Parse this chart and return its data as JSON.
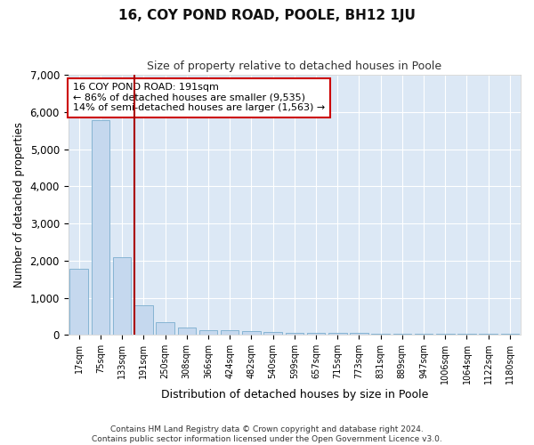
{
  "title": "16, COY POND ROAD, POOLE, BH12 1JU",
  "subtitle": "Size of property relative to detached houses in Poole",
  "xlabel": "Distribution of detached houses by size in Poole",
  "ylabel": "Number of detached properties",
  "bar_labels": [
    "17sqm",
    "75sqm",
    "133sqm",
    "191sqm",
    "250sqm",
    "308sqm",
    "366sqm",
    "424sqm",
    "482sqm",
    "540sqm",
    "599sqm",
    "657sqm",
    "715sqm",
    "773sqm",
    "831sqm",
    "889sqm",
    "947sqm",
    "1006sqm",
    "1064sqm",
    "1122sqm",
    "1180sqm"
  ],
  "bar_values": [
    1780,
    5780,
    2100,
    800,
    350,
    200,
    130,
    115,
    100,
    80,
    60,
    55,
    50,
    45,
    40,
    38,
    35,
    32,
    30,
    28,
    25
  ],
  "bar_color": "#c5d8ee",
  "bar_edgecolor": "#7aadce",
  "highlight_index": 3,
  "highlight_color": "#aa0000",
  "ylim": [
    0,
    7000
  ],
  "yticks": [
    0,
    1000,
    2000,
    3000,
    4000,
    5000,
    6000,
    7000
  ],
  "annotation_text": "16 COY POND ROAD: 191sqm\n← 86% of detached houses are smaller (9,535)\n14% of semi-detached houses are larger (1,563) →",
  "annotation_box_color": "#cc0000",
  "footer_line1": "Contains HM Land Registry data © Crown copyright and database right 2024.",
  "footer_line2": "Contains public sector information licensed under the Open Government Licence v3.0.",
  "fig_facecolor": "#ffffff",
  "plot_facecolor": "#dce8f5"
}
